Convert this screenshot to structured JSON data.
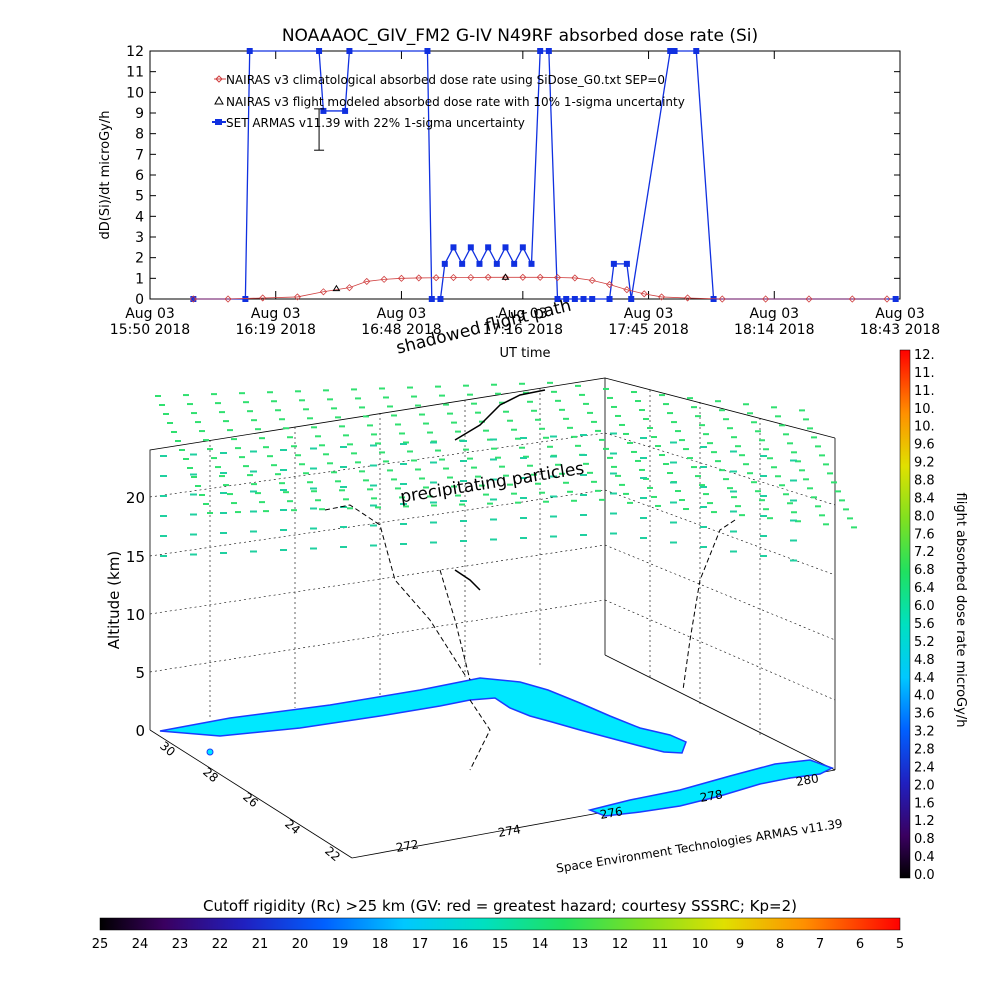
{
  "title": "NOAAAOC_GIV_FM2 G-IV    N49RF   absorbed dose rate (Si)",
  "footer_credit": "Space Environment Technologies ARMAS v11.39",
  "colors": {
    "nairas_clim": "#d04040",
    "nairas_flight": "#000000",
    "armas": "#1030e0",
    "map_fill": "#00e8ff",
    "map_coast": "#1a3cff"
  },
  "top_chart": {
    "chart_data": {
      "type": "line",
      "ylabel": "dD(Si)/dt microGy/h",
      "xlabel": "UT time",
      "ylim": [
        0,
        12
      ],
      "yticks": [
        0,
        1,
        2,
        3,
        4,
        5,
        6,
        7,
        8,
        9,
        10,
        11,
        12
      ],
      "xticks": [
        {
          "t": 0,
          "l1": "Aug 03",
          "l2": "15:50 2018"
        },
        {
          "t": 29,
          "l1": "Aug 03",
          "l2": "16:19 2018"
        },
        {
          "t": 58,
          "l1": "Aug 03",
          "l2": "16:48 2018"
        },
        {
          "t": 86,
          "l1": "Aug 03",
          "l2": "17:16 2018"
        },
        {
          "t": 115,
          "l1": "Aug 03",
          "l2": "17:45 2018"
        },
        {
          "t": 144,
          "l1": "Aug 03",
          "l2": "18:14 2018"
        },
        {
          "t": 173,
          "l1": "Aug 03",
          "l2": "18:43 2018"
        }
      ],
      "xlim": [
        0,
        173
      ],
      "legend": [
        {
          "label": "NAIRAS v3 climatological absorbed dose rate using SiDose_G0.txt SEP=0",
          "marker": "diamond"
        },
        {
          "label": "NAIRAS v3 flight modeled absorbed dose rate with 10% 1-sigma uncertainty",
          "marker": "triangle"
        },
        {
          "label": "SET ARMAS v11.39 with 22% 1-sigma uncertainty",
          "marker": "square"
        }
      ],
      "legend_position": "top-left",
      "annotation": "shadowed flight path",
      "series": [
        {
          "name": "NAIRAS v3 climatological absorbed dose rate using SiDose_G0.txt SEP=0",
          "t": [
            10,
            18,
            26,
            34,
            40,
            46,
            50,
            54,
            58,
            62,
            66,
            70,
            74,
            78,
            82,
            86,
            90,
            94,
            98,
            102,
            106,
            110,
            114,
            118,
            124,
            132,
            142,
            152,
            162,
            170
          ],
          "v": [
            0,
            0,
            0.05,
            0.1,
            0.35,
            0.55,
            0.85,
            0.95,
            1.0,
            1.02,
            1.03,
            1.04,
            1.04,
            1.05,
            1.05,
            1.05,
            1.05,
            1.04,
            1.02,
            0.9,
            0.7,
            0.45,
            0.25,
            0.1,
            0.05,
            0,
            0,
            0,
            0,
            0
          ]
        },
        {
          "name": "NAIRAS v3 flight modeled absorbed dose rate with 10% 1-sigma uncertainty",
          "t": [
            43,
            82
          ],
          "v": [
            0.5,
            1.05
          ],
          "err_t": 39,
          "err_v": 8.2,
          "err_lo": 7.2,
          "err_hi": 9.2
        },
        {
          "name": "SET ARMAS v11.39 with 22% 1-sigma uncertainty",
          "t": [
            10,
            22,
            23,
            39,
            40,
            45,
            46,
            64,
            65,
            67,
            68,
            70,
            72,
            74,
            76,
            78,
            80,
            82,
            84,
            86,
            88,
            90,
            92,
            94,
            96,
            98,
            100,
            102,
            106,
            107,
            110,
            111,
            120,
            121,
            126,
            130,
            172
          ],
          "v": [
            0,
            0,
            12,
            12,
            9.1,
            9.1,
            12,
            12,
            0,
            0,
            1.7,
            2.5,
            1.7,
            2.5,
            1.7,
            2.5,
            1.7,
            2.5,
            1.7,
            2.5,
            1.7,
            12,
            12,
            0,
            0,
            0,
            0,
            0,
            0,
            1.7,
            1.7,
            0,
            12,
            12,
            12,
            0,
            0
          ]
        }
      ]
    }
  },
  "map3d": {
    "z_label": "Altitude (km)",
    "z_ticks": [
      "0",
      "5",
      "10",
      "15",
      "20"
    ],
    "lat_ticks": [
      "30",
      "28",
      "26",
      "24",
      "22"
    ],
    "lon_ticks": [
      "272",
      "274",
      "276",
      "278",
      "280"
    ],
    "annotations": [
      "precipitating particles"
    ]
  },
  "colorbar_right": {
    "label": "flight absorbed dose rate microGy/h",
    "ticks": [
      "12.",
      "11.",
      "11.",
      "10.",
      "10.",
      "9.6",
      "9.2",
      "8.8",
      "8.4",
      "8.0",
      "7.6",
      "7.2",
      "6.8",
      "6.4",
      "6.0",
      "5.6",
      "5.2",
      "4.8",
      "4.4",
      "4.0",
      "3.6",
      "3.2",
      "2.8",
      "2.4",
      "2.0",
      "1.6",
      "1.2",
      "0.8",
      "0.4",
      "0.0"
    ]
  },
  "colorbar_bottom": {
    "label": "Cutoff rigidity (Rc) >25 km (GV: red = greatest hazard; courtesy SSSRC; Kp=2)",
    "ticks": [
      "25",
      "24",
      "23",
      "22",
      "21",
      "20",
      "19",
      "18",
      "17",
      "16",
      "15",
      "14",
      "13",
      "12",
      "11",
      "10",
      "9",
      "8",
      "7",
      "6",
      "5"
    ]
  }
}
